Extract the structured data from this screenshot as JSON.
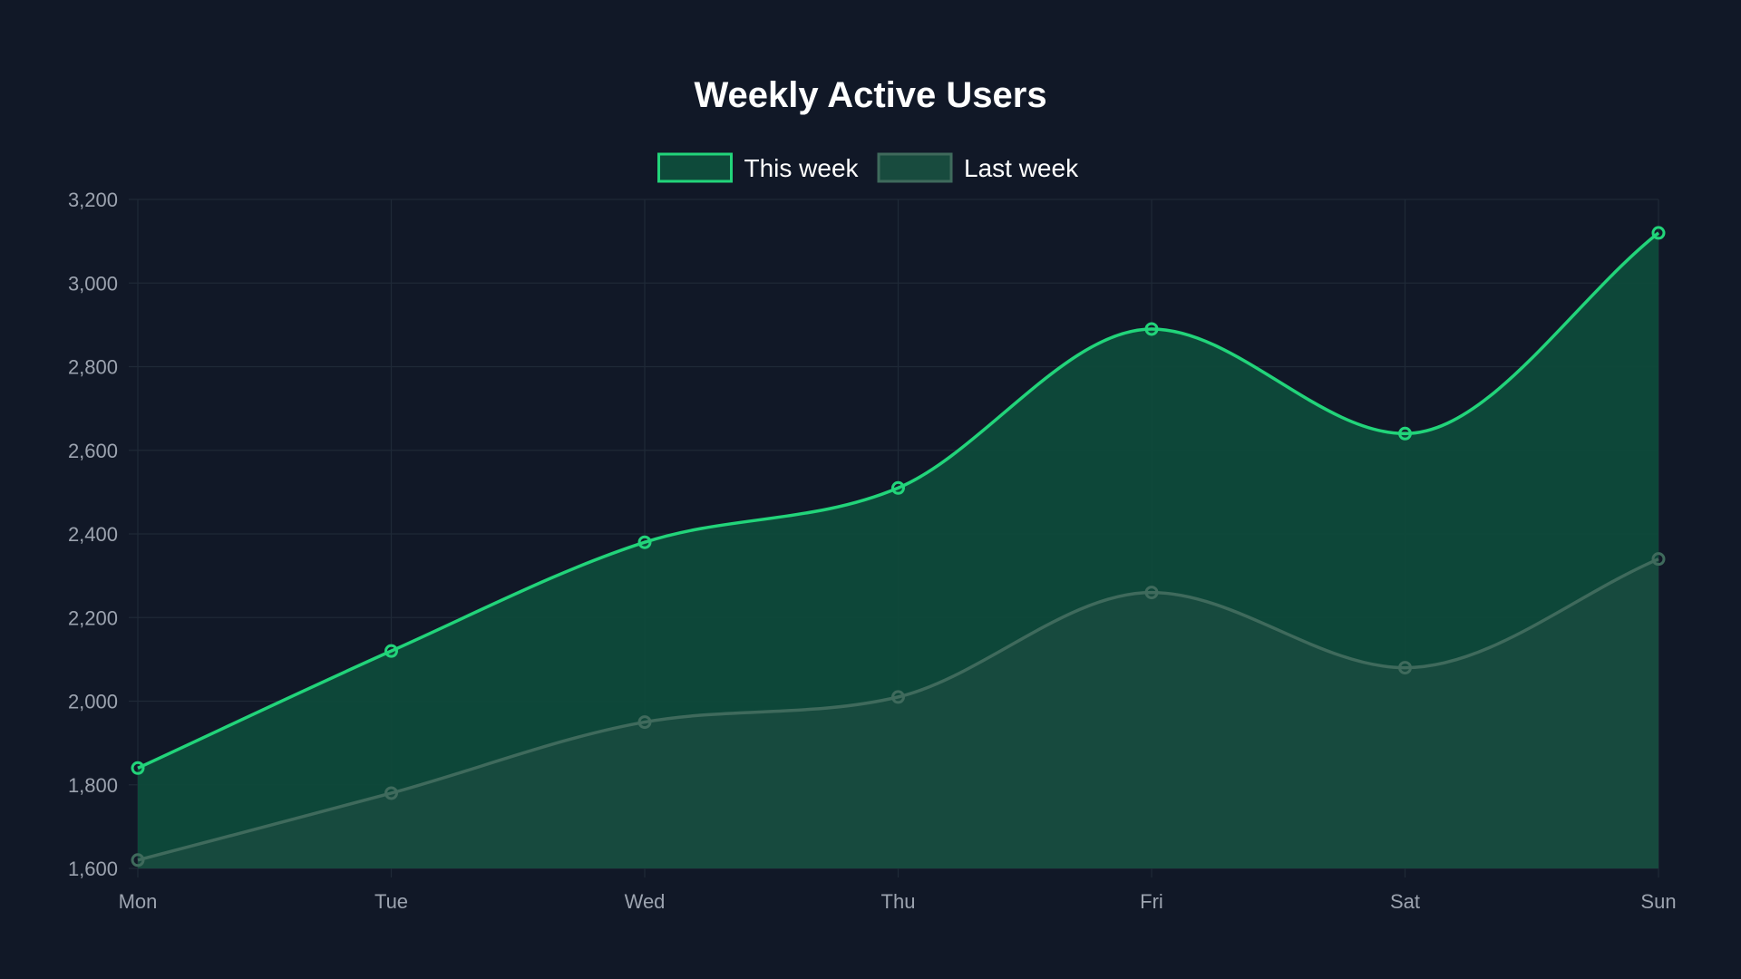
{
  "chart_data": {
    "type": "line",
    "title": "Weekly Active Users",
    "categories": [
      "Mon",
      "Tue",
      "Wed",
      "Thu",
      "Fri",
      "Sat",
      "Sun"
    ],
    "series": [
      {
        "name": "This week",
        "values": [
          1840,
          2120,
          2380,
          2510,
          2890,
          2640,
          3120
        ],
        "color": "#22d47a",
        "fill": "#0e4a3a"
      },
      {
        "name": "Last week",
        "values": [
          1620,
          1780,
          1950,
          2010,
          2260,
          2080,
          2340
        ],
        "color": "#3f6a5c",
        "fill": "#184b3e"
      }
    ],
    "ylim": [
      1600,
      3200
    ],
    "yticks": [
      "1,600",
      "1,800",
      "2,000",
      "2,200",
      "2,400",
      "2,600",
      "2,800",
      "3,000",
      "3,200"
    ],
    "ytick_values": [
      1600,
      1800,
      2000,
      2200,
      2400,
      2600,
      2800,
      3000,
      3200
    ],
    "grid": true,
    "legend_position": "top-center",
    "area_fill": true,
    "smooth": true,
    "colors": {
      "background": "#111827",
      "grid": "#1f2937",
      "tick_text": "#9ca3af",
      "title_text": "#ffffff",
      "legend_text": "#ffffff"
    }
  }
}
